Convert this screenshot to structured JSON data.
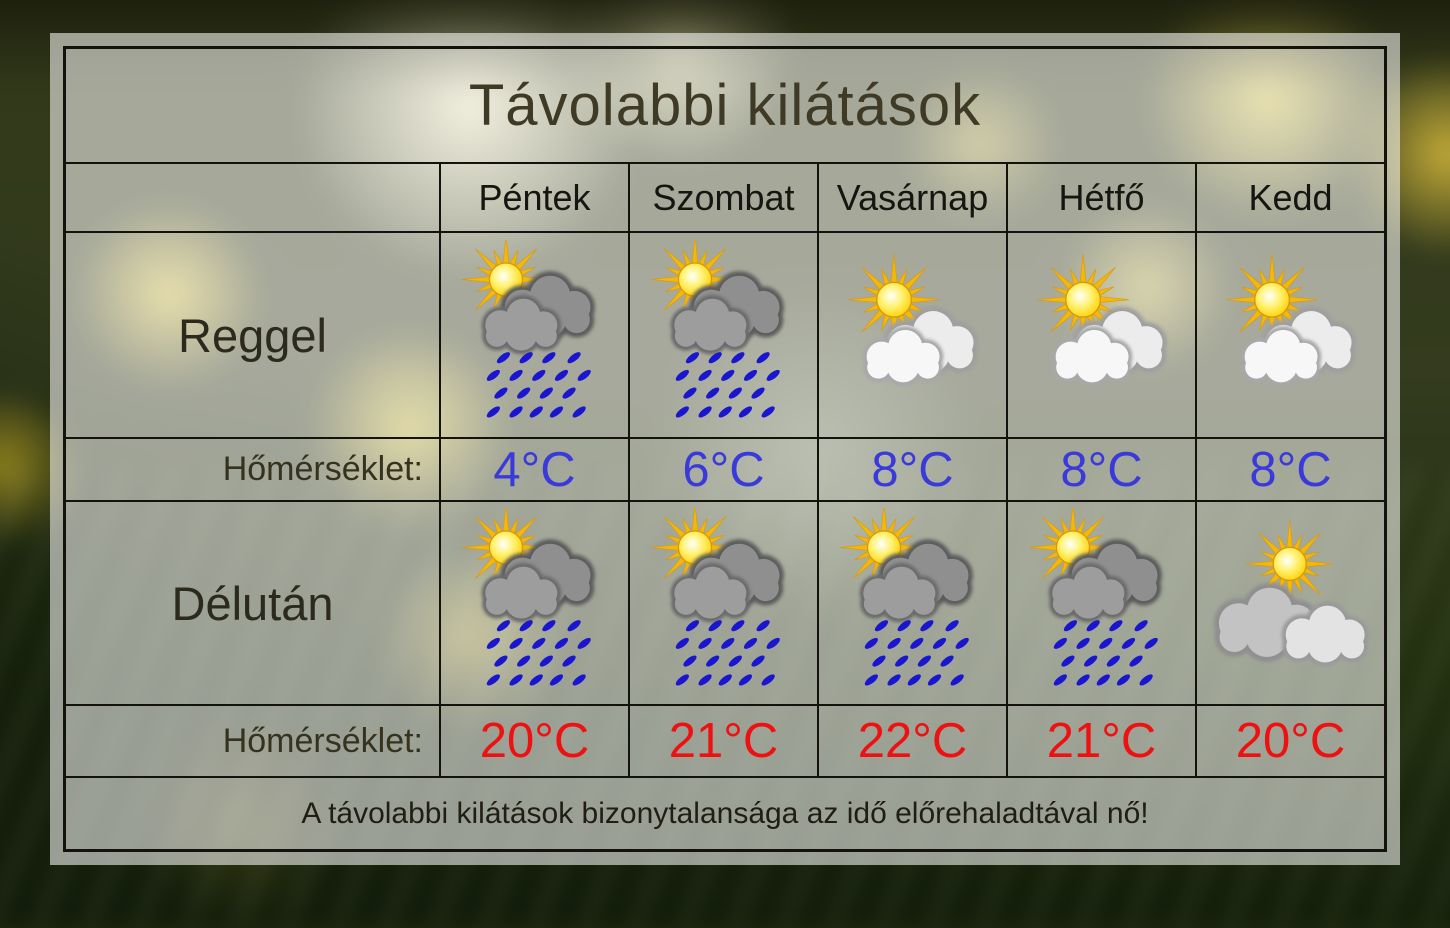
{
  "title": "Távolabbi kilátások",
  "days": [
    "Péntek",
    "Szombat",
    "Vasárnap",
    "Hétfő",
    "Kedd"
  ],
  "rows": {
    "morning_label": "Reggel",
    "afternoon_label": "Délután",
    "temperature_label": "Hőmérséklet:"
  },
  "morning": {
    "icons": [
      "sun-dark-cloud-rain",
      "sun-dark-cloud-rain",
      "sun-light-cloud",
      "sun-light-cloud",
      "sun-light-cloud"
    ],
    "temps": [
      "4°C",
      "6°C",
      "8°C",
      "8°C",
      "8°C"
    ]
  },
  "afternoon": {
    "icons": [
      "sun-dark-cloud-rain",
      "sun-dark-cloud-rain",
      "sun-dark-cloud-rain",
      "sun-dark-cloud-rain",
      "sun-gray-cloud"
    ],
    "temps": [
      "20°C",
      "21°C",
      "22°C",
      "21°C",
      "20°C"
    ]
  },
  "footer_note": "A távolabbi kilátások bizonytalansága az idő előrehaladtával nő!",
  "colors": {
    "morning_temp": "#3a3ada",
    "afternoon_temp": "#ee1111",
    "rain": "#1a15cf",
    "title_text": "#3e3a26",
    "label_text": "#2c2a1c"
  }
}
